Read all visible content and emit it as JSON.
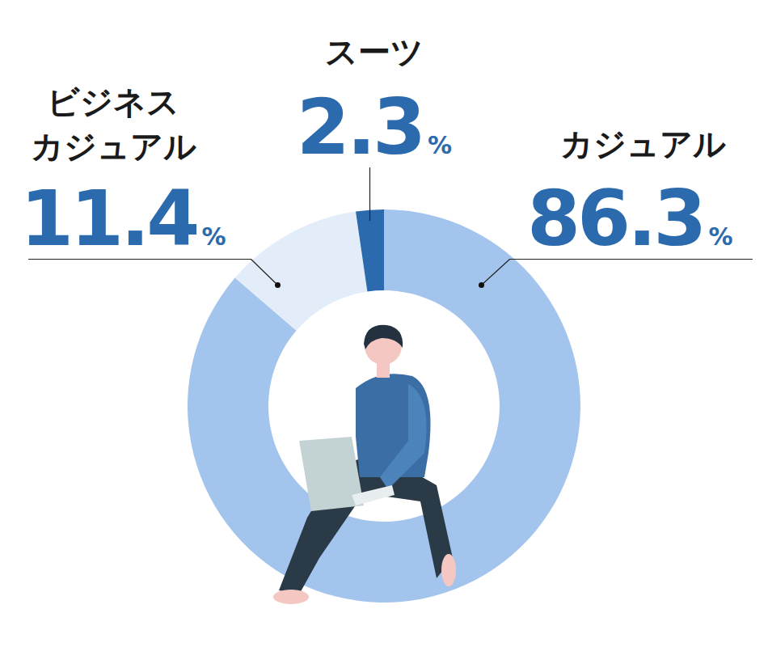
{
  "chart_data": {
    "type": "donut",
    "categories": [
      "カジュアル",
      "ビジネスカジュアル",
      "スーツ"
    ],
    "values": [
      86.3,
      11.4,
      2.3
    ],
    "value_labels": [
      "86.3%",
      "11.4%",
      "2.3%"
    ],
    "colors": [
      "#a3c4ec",
      "#e3edf9",
      "#2b6aad"
    ],
    "data_labels": true
  }
}
